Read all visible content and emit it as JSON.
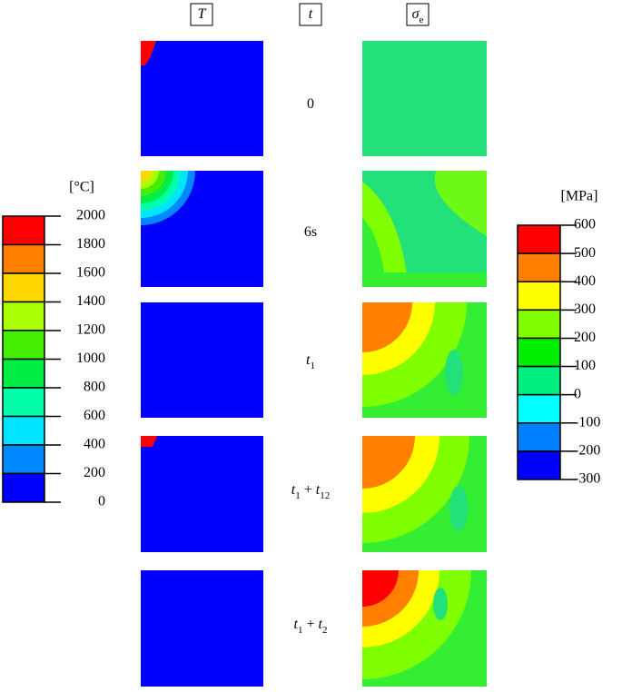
{
  "headers": [
    {
      "text": "T"
    },
    {
      "text": "t"
    },
    {
      "text": "σ",
      "sub": "e"
    }
  ],
  "rows": [
    {
      "time": [
        {
          "text": "0"
        }
      ]
    },
    {
      "time": [
        {
          "text": "6s"
        }
      ]
    },
    {
      "time": [
        {
          "text": "t",
          "sub": "1"
        }
      ]
    },
    {
      "time": [
        {
          "text": "t",
          "sub": "1"
        },
        {
          "text": " + "
        },
        {
          "text": "t",
          "sub": "12"
        }
      ]
    },
    {
      "time": [
        {
          "text": "t",
          "sub": "1"
        },
        {
          "text": " + "
        },
        {
          "text": "t",
          "sub": "2"
        }
      ]
    }
  ],
  "temperature_scale": {
    "unit": "[°C]",
    "ticks": [
      2000,
      1800,
      1600,
      1400,
      1200,
      1000,
      800,
      600,
      400,
      200,
      0
    ],
    "colors": [
      "#ff0000",
      "#ff7f00",
      "#ffd700",
      "#aaff00",
      "#44ee00",
      "#00ee44",
      "#00ffaa",
      "#00e5ff",
      "#0088ff",
      "#0000ff"
    ]
  },
  "stress_scale": {
    "unit": "[MPa]",
    "ticks": [
      600,
      500,
      400,
      300,
      200,
      100,
      0,
      -100,
      -200,
      -300
    ],
    "colors": [
      "#ff0000",
      "#ff7f00",
      "#ffff00",
      "#80ff00",
      "#00ee00",
      "#00f080",
      "#00ffff",
      "#0080ff",
      "#0000ff"
    ]
  }
}
